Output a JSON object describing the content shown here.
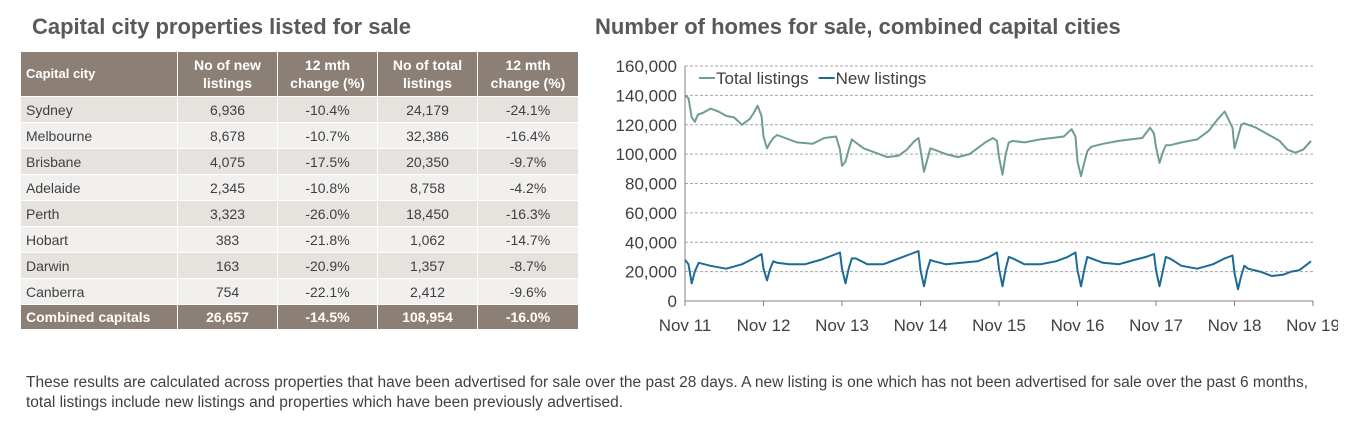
{
  "left_title": "Capital city properties listed for sale",
  "right_title": "Number of homes for sale, combined capital cities",
  "table": {
    "headers": [
      "Capital city",
      "No of new listings",
      "12 mth change (%)",
      "No of total listings",
      "12 mth change (%)"
    ],
    "rows": [
      [
        "Sydney",
        "6,936",
        "-10.4%",
        "24,179",
        "-24.1%"
      ],
      [
        "Melbourne",
        "8,678",
        "-10.7%",
        "32,386",
        "-16.4%"
      ],
      [
        "Brisbane",
        "4,075",
        "-17.5%",
        "20,350",
        "-9.7%"
      ],
      [
        "Adelaide",
        "2,345",
        "-10.8%",
        "8,758",
        "-4.2%"
      ],
      [
        "Perth",
        "3,323",
        "-26.0%",
        "18,450",
        "-16.3%"
      ],
      [
        "Hobart",
        "383",
        "-21.8%",
        "1,062",
        "-14.7%"
      ],
      [
        "Darwin",
        "163",
        "-20.9%",
        "1,357",
        "-8.7%"
      ],
      [
        "Canberra",
        "754",
        "-22.1%",
        "2,412",
        "-9.6%"
      ]
    ],
    "total": [
      "Combined capitals",
      "26,657",
      "-14.5%",
      "108,954",
      "-16.0%"
    ]
  },
  "footnote": "These results are calculated across properties that have been advertised for sale over the past 28 days.  A new listing is one which has not been advertised for sale over the past 6 months, total listings include new listings and properties which have been previously advertised.",
  "chart_data": {
    "type": "line",
    "title": "Number of homes for sale, combined capital cities",
    "xlabel": "",
    "ylabel": "",
    "ylim": [
      0,
      160000
    ],
    "yticks": [
      0,
      20000,
      40000,
      60000,
      80000,
      100000,
      120000,
      140000,
      160000
    ],
    "ytick_labels": [
      "0",
      "20,000",
      "40,000",
      "60,000",
      "80,000",
      "100,000",
      "120,000",
      "140,000",
      "160,000"
    ],
    "xticks": [
      2011.875,
      2012.875,
      2013.875,
      2014.875,
      2015.875,
      2016.875,
      2017.875,
      2018.875,
      2019.875
    ],
    "xtick_labels": [
      "Nov 11",
      "Nov 12",
      "Nov 13",
      "Nov 14",
      "Nov 15",
      "Nov 16",
      "Nov 17",
      "Nov 18",
      "Nov 19"
    ],
    "xlim": [
      2011.875,
      2019.875
    ],
    "grid": "horizontal dashed",
    "legend": "top-left",
    "series": [
      {
        "name": "Total listings",
        "color": "#6f9e8c",
        "x": [
          2011.875,
          2011.92,
          2011.96,
          2012.0,
          2012.04,
          2012.1,
          2012.2,
          2012.3,
          2012.4,
          2012.5,
          2012.6,
          2012.7,
          2012.75,
          2012.8,
          2012.85,
          2012.875,
          2012.92,
          2012.96,
          2013.0,
          2013.05,
          2013.15,
          2013.3,
          2013.5,
          2013.65,
          2013.8,
          2013.85,
          2013.875,
          2013.92,
          2013.96,
          2014.0,
          2014.05,
          2014.15,
          2014.3,
          2014.45,
          2014.6,
          2014.7,
          2014.8,
          2014.85,
          2014.875,
          2014.92,
          2014.96,
          2015.0,
          2015.05,
          2015.2,
          2015.35,
          2015.5,
          2015.6,
          2015.7,
          2015.8,
          2015.85,
          2015.875,
          2015.92,
          2015.96,
          2016.0,
          2016.05,
          2016.2,
          2016.4,
          2016.55,
          2016.7,
          2016.8,
          2016.85,
          2016.875,
          2016.92,
          2016.96,
          2017.0,
          2017.05,
          2017.2,
          2017.4,
          2017.55,
          2017.7,
          2017.8,
          2017.85,
          2017.875,
          2017.92,
          2017.96,
          2018.0,
          2018.05,
          2018.2,
          2018.4,
          2018.55,
          2018.65,
          2018.75,
          2018.85,
          2018.875,
          2018.92,
          2018.96,
          2019.0,
          2019.05,
          2019.15,
          2019.25,
          2019.35,
          2019.45,
          2019.55,
          2019.65,
          2019.75,
          2019.85
        ],
        "values": [
          140000,
          138000,
          125000,
          122000,
          127000,
          128000,
          131000,
          129000,
          126000,
          125000,
          120000,
          124000,
          128000,
          133000,
          126000,
          112000,
          104000,
          108000,
          111000,
          113000,
          111000,
          108000,
          107000,
          111000,
          112000,
          103000,
          92000,
          95000,
          103000,
          110000,
          108000,
          104000,
          101000,
          98000,
          99000,
          103000,
          109000,
          111000,
          103000,
          88000,
          96000,
          104000,
          103000,
          100000,
          98000,
          100000,
          104000,
          108000,
          111000,
          109000,
          98000,
          86000,
          100000,
          108000,
          109000,
          108000,
          110000,
          111000,
          112000,
          117000,
          112000,
          95000,
          85000,
          94000,
          102000,
          105000,
          107000,
          109000,
          110000,
          111000,
          118000,
          114000,
          105000,
          94000,
          101000,
          106000,
          106000,
          108000,
          110000,
          116000,
          123000,
          129000,
          118000,
          104000,
          112000,
          120000,
          121000,
          120000,
          118000,
          115000,
          112000,
          109000,
          103000,
          101000,
          103000,
          109000
        ]
      },
      {
        "name": "New listings",
        "color": "#1d6b95",
        "x": [
          2011.875,
          2011.92,
          2011.96,
          2012.0,
          2012.05,
          2012.2,
          2012.4,
          2012.6,
          2012.75,
          2012.85,
          2012.875,
          2012.92,
          2012.96,
          2013.0,
          2013.05,
          2013.2,
          2013.4,
          2013.6,
          2013.75,
          2013.85,
          2013.875,
          2013.92,
          2013.96,
          2014.0,
          2014.05,
          2014.2,
          2014.4,
          2014.6,
          2014.75,
          2014.85,
          2014.875,
          2014.92,
          2014.96,
          2015.0,
          2015.05,
          2015.2,
          2015.4,
          2015.6,
          2015.75,
          2015.85,
          2015.875,
          2015.92,
          2015.96,
          2016.0,
          2016.05,
          2016.2,
          2016.4,
          2016.6,
          2016.75,
          2016.85,
          2016.875,
          2016.92,
          2016.96,
          2017.0,
          2017.05,
          2017.2,
          2017.4,
          2017.6,
          2017.75,
          2017.85,
          2017.875,
          2017.92,
          2017.96,
          2018.0,
          2018.05,
          2018.2,
          2018.4,
          2018.6,
          2018.75,
          2018.85,
          2018.875,
          2018.92,
          2018.96,
          2019.0,
          2019.05,
          2019.2,
          2019.35,
          2019.5,
          2019.6,
          2019.7,
          2019.8,
          2019.85
        ],
        "values": [
          28000,
          25000,
          12000,
          20000,
          26000,
          24000,
          22000,
          25000,
          29000,
          32000,
          22000,
          14000,
          22000,
          27000,
          26000,
          25000,
          25000,
          28000,
          31000,
          33000,
          22000,
          12000,
          22000,
          29000,
          29000,
          25000,
          25000,
          29000,
          32000,
          34000,
          21000,
          10000,
          21000,
          28000,
          27000,
          25000,
          26000,
          27000,
          30000,
          33000,
          22000,
          10000,
          22000,
          30000,
          29000,
          25000,
          25000,
          27000,
          30000,
          33000,
          21000,
          10000,
          21000,
          30000,
          29000,
          26000,
          25000,
          28000,
          30000,
          32000,
          21000,
          10000,
          20000,
          30000,
          29000,
          24000,
          22000,
          25000,
          29000,
          31000,
          19000,
          8000,
          17000,
          24000,
          22000,
          20000,
          17000,
          18000,
          20000,
          21000,
          25000,
          27000
        ]
      }
    ]
  }
}
